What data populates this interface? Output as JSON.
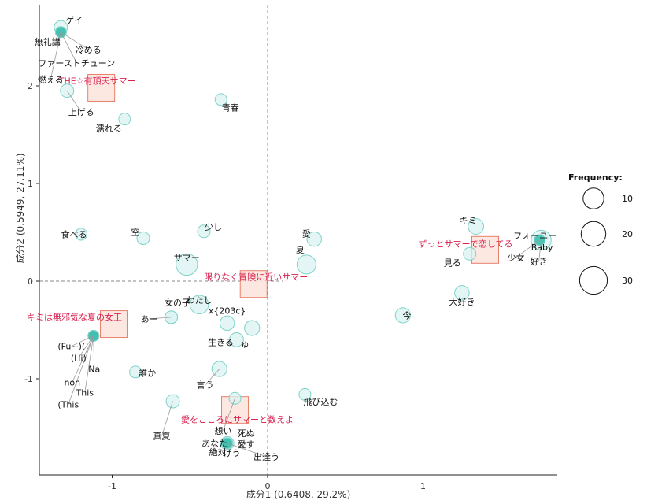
{
  "chart_data": {
    "type": "scatter",
    "xlabel": "成分1 (0.6408, 29.2%)",
    "ylabel": "成分2 (0.5949, 27.11%)",
    "xlim": [
      -1.5,
      1.88
    ],
    "ylim": [
      -1.98,
      2.82
    ],
    "x_ticks": [
      -1,
      0,
      1
    ],
    "y_ticks": [
      -1,
      0,
      1,
      2
    ],
    "grid": false,
    "reference_lines": {
      "x": 0,
      "y": 0
    },
    "legend": {
      "title": "Frequency:",
      "placement": "right",
      "sizes": [
        10,
        20,
        30
      ]
    },
    "words": [
      {
        "label": "ゲイ",
        "x": -1.33,
        "y": 2.6,
        "freq": 5
      },
      {
        "label": "無礼講",
        "x": -1.33,
        "y": 2.55,
        "freq": 2
      },
      {
        "label": "冷める",
        "x": -1.33,
        "y": 2.55,
        "freq": 2
      },
      {
        "label": "ファーストチューン",
        "x": -1.33,
        "y": 2.55,
        "freq": 2
      },
      {
        "label": "燃える",
        "x": -1.33,
        "y": 2.55,
        "freq": 2
      },
      {
        "label": "上げる",
        "x": -1.29,
        "y": 1.95,
        "freq": 5
      },
      {
        "label": "青春",
        "x": -0.3,
        "y": 1.86,
        "freq": 3
      },
      {
        "label": "濡れる",
        "x": -0.92,
        "y": 1.66,
        "freq": 3
      },
      {
        "label": "キミ",
        "x": 1.34,
        "y": 0.56,
        "freq": 9
      },
      {
        "label": "フォーユー",
        "x": 1.75,
        "y": 0.42,
        "freq": 2
      },
      {
        "label": "Baby",
        "x": 1.75,
        "y": 0.42,
        "freq": 2
      },
      {
        "label": "少女",
        "x": 1.75,
        "y": 0.42,
        "freq": 2
      },
      {
        "label": "好き",
        "x": 1.76,
        "y": 0.42,
        "freq": 20
      },
      {
        "label": "見る",
        "x": 1.3,
        "y": 0.28,
        "freq": 4
      },
      {
        "label": "大好き",
        "x": 1.25,
        "y": -0.12,
        "freq": 7
      },
      {
        "label": "食べる",
        "x": -1.2,
        "y": 0.48,
        "freq": 3
      },
      {
        "label": "空",
        "x": -0.8,
        "y": 0.44,
        "freq": 4
      },
      {
        "label": "少し",
        "x": -0.41,
        "y": 0.51,
        "freq": 4
      },
      {
        "label": "愛",
        "x": 0.3,
        "y": 0.43,
        "freq": 7
      },
      {
        "label": "サマー",
        "x": -0.52,
        "y": 0.17,
        "freq": 25
      },
      {
        "label": "夏",
        "x": 0.25,
        "y": 0.17,
        "freq": 17
      },
      {
        "label": "わたし",
        "x": -0.44,
        "y": -0.24,
        "freq": 16
      },
      {
        "label": "あー",
        "x": -0.62,
        "y": -0.37,
        "freq": 4
      },
      {
        "label": "女の子",
        "x": -0.62,
        "y": -0.37,
        "freq": 4
      },
      {
        "label": "x{203c}",
        "x": -0.26,
        "y": -0.43,
        "freq": 7
      },
      {
        "label": "ゅ",
        "x": -0.1,
        "y": -0.48,
        "freq": 8
      },
      {
        "label": "生きる",
        "x": -0.2,
        "y": -0.6,
        "freq": 6
      },
      {
        "label": "今",
        "x": 0.87,
        "y": -0.35,
        "freq": 8
      },
      {
        "label": "(Fu~)(",
        "x": -1.12,
        "y": -0.56,
        "freq": 2
      },
      {
        "label": "(Hi)",
        "x": -1.12,
        "y": -0.56,
        "freq": 2
      },
      {
        "label": "Na",
        "x": -1.12,
        "y": -0.56,
        "freq": 2
      },
      {
        "label": "non",
        "x": -1.12,
        "y": -0.56,
        "freq": 2
      },
      {
        "label": "This",
        "x": -1.12,
        "y": -0.56,
        "freq": 2
      },
      {
        "label": "(This",
        "x": -1.12,
        "y": -0.56,
        "freq": 2
      },
      {
        "label": "誰か",
        "x": -0.85,
        "y": -0.93,
        "freq": 3
      },
      {
        "label": "言う",
        "x": -0.31,
        "y": -0.9,
        "freq": 8
      },
      {
        "label": "真夏",
        "x": -0.61,
        "y": -1.23,
        "freq": 5
      },
      {
        "label": "想い",
        "x": -0.21,
        "y": -1.2,
        "freq": 3
      },
      {
        "label": "飛び込む",
        "x": 0.24,
        "y": -1.16,
        "freq": 3
      },
      {
        "label": "あなた",
        "x": -0.26,
        "y": -1.66,
        "freq": 2
      },
      {
        "label": "死ぬ",
        "x": -0.26,
        "y": -1.66,
        "freq": 2
      },
      {
        "label": "愛す",
        "x": -0.26,
        "y": -1.66,
        "freq": 2
      },
      {
        "label": "絶対",
        "x": -0.26,
        "y": -1.66,
        "freq": 2
      },
      {
        "label": "げう",
        "x": -0.26,
        "y": -1.66,
        "freq": 2
      },
      {
        "label": "出逢う",
        "x": -0.26,
        "y": -1.66,
        "freq": 5
      }
    ],
    "documents": [
      {
        "label": "THE☆有頂天サマー",
        "x": -1.07,
        "y": 1.98
      },
      {
        "label": "ずっとサマーで恋してる",
        "x": 1.4,
        "y": 0.32
      },
      {
        "label": "限りなく冒険に近いサマー",
        "x": -0.09,
        "y": -0.03
      },
      {
        "label": "キミは無邪気な夏の女王",
        "x": -0.99,
        "y": -0.44
      },
      {
        "label": "愛をこころにサマーと数えよ",
        "x": -0.21,
        "y": -1.32
      }
    ]
  }
}
